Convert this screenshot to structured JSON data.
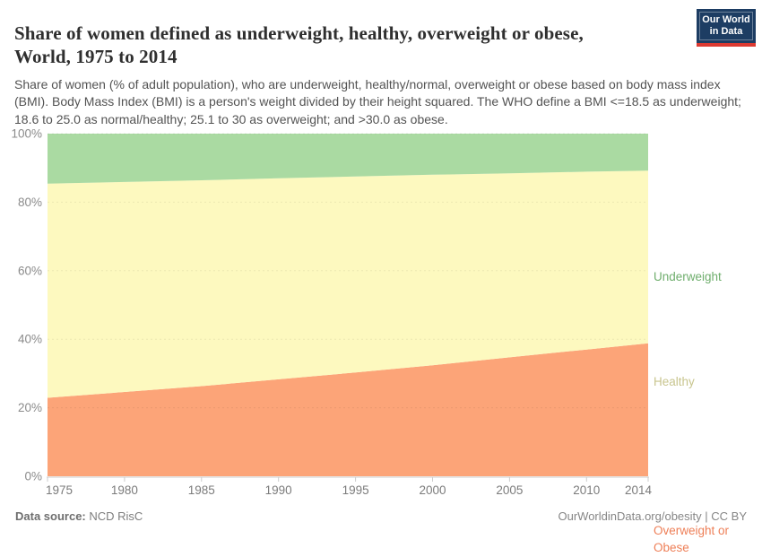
{
  "header": {
    "title": "Share of women defined as underweight, healthy, overweight or obese, World, 1975 to 2014",
    "subtitle": "Share of women (% of adult population), who are underweight, healthy/normal, overweight or obese based on body mass index (BMI). Body Mass Index (BMI) is a person's weight divided by their height squared. The WHO define a BMI <=18.5 as underweight; 18.6 to 25.0 as normal/healthy; 25.1 to 30 as overweight; and >30.0 as obese.",
    "logo": {
      "line1": "Our World",
      "line2": "in Data",
      "bg_color": "#1d3d63",
      "accent_color": "#dc3a32"
    }
  },
  "chart_data": {
    "type": "area",
    "stacked": true,
    "title": "Share of women defined as underweight, healthy, overweight or obese, World, 1975 to 2014",
    "xlabel": "",
    "ylabel": "",
    "x": [
      1975,
      1980,
      1985,
      1990,
      1995,
      2000,
      2005,
      2010,
      2014
    ],
    "series": [
      {
        "name": "Overweight or Obese",
        "values": [
          22.9,
          24.6,
          26.3,
          28.3,
          30.3,
          32.4,
          34.7,
          37.0,
          38.8
        ],
        "color": "#fca478",
        "label_color": "#ee7f57"
      },
      {
        "name": "Healthy",
        "values": [
          62.5,
          61.3,
          60.1,
          58.7,
          57.2,
          55.6,
          53.7,
          51.9,
          50.4
        ],
        "color": "#fdf9bf",
        "label_color": "#c8c58e"
      },
      {
        "name": "Underweight",
        "values": [
          14.6,
          14.1,
          13.6,
          13.0,
          12.5,
          12.0,
          11.6,
          11.1,
          10.8
        ],
        "color": "#aadaa2",
        "label_color": "#6fae6d"
      }
    ],
    "ylim": [
      0,
      100
    ],
    "yticks": [
      0,
      20,
      40,
      60,
      80,
      100
    ],
    "ytick_suffix": "%",
    "xticks": [
      1975,
      1980,
      1985,
      1990,
      1995,
      2000,
      2005,
      2010,
      2014
    ],
    "grid": "horizontal-dashed",
    "legend_position": "labels-right-of-plot",
    "axis_text_color": "#7b7b7b",
    "grid_color": "rgba(0,0,0,0.07)",
    "axis_line_color": "#cccccc"
  },
  "footer": {
    "source_label": "Data source:",
    "source_value": "NCD RisC",
    "license_text": "OurWorldinData.org/obesity | CC BY"
  }
}
